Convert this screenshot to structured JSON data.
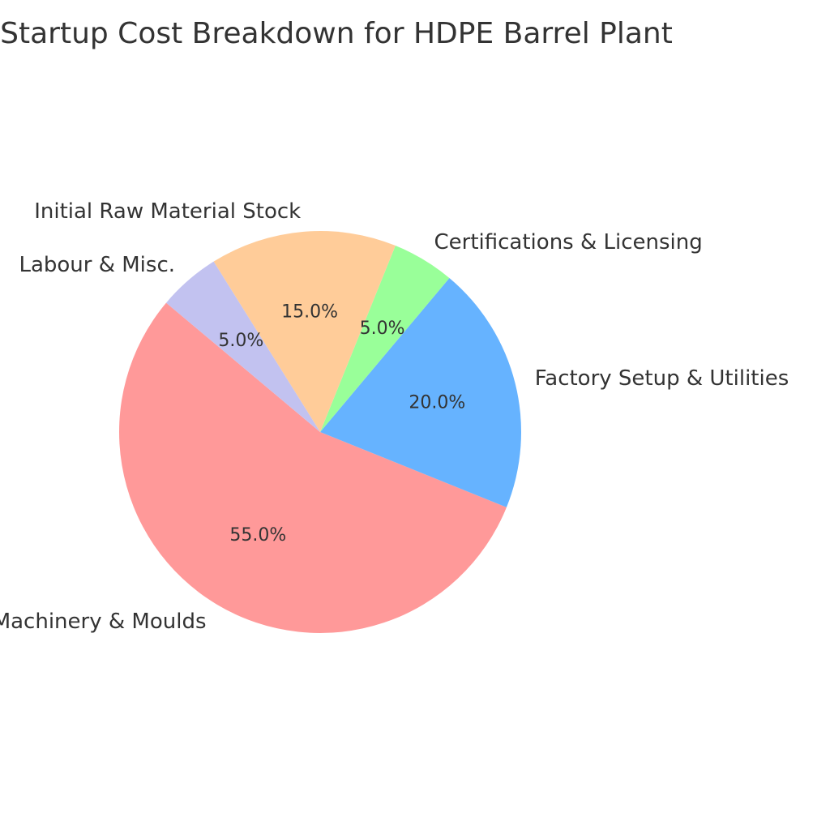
{
  "chart_data": {
    "type": "pie",
    "title": "Startup Cost Breakdown for HDPE Barrel Plant",
    "start_angle_deg": 140,
    "direction": "counterclockwise",
    "slices": [
      {
        "label": "Machinery & Moulds",
        "value": 55.0,
        "pct_label": "55.0%",
        "color": "#ff9999"
      },
      {
        "label": "Factory Setup & Utilities",
        "value": 20.0,
        "pct_label": "20.0%",
        "color": "#66b3ff"
      },
      {
        "label": "Certifications & Licensing",
        "value": 5.0,
        "pct_label": "5.0%",
        "color": "#99ff99"
      },
      {
        "label": "Initial Raw Material Stock",
        "value": 15.0,
        "pct_label": "15.0%",
        "color": "#ffcc99"
      },
      {
        "label": "Labour & Misc.",
        "value": 5.0,
        "pct_label": "5.0%",
        "color": "#c2c2f0"
      }
    ]
  }
}
